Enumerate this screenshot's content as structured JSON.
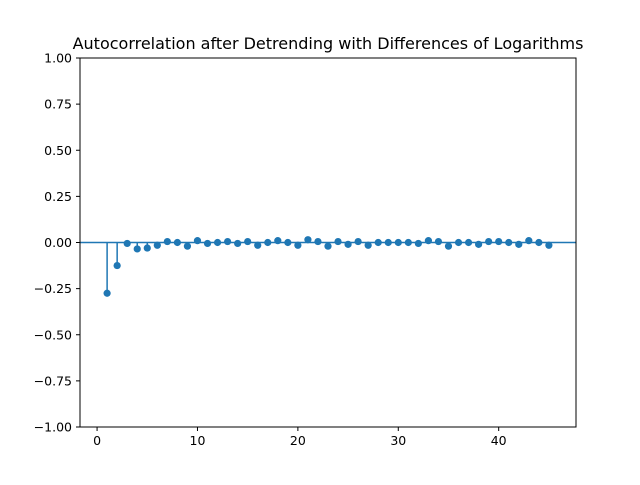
{
  "chart_data": {
    "type": "scatter",
    "subtype": "stem",
    "title": "Autocorrelation after Detrending with Differences of Logarithms",
    "xlabel": "",
    "ylabel": "",
    "xlim": [
      -1.7,
      47.7
    ],
    "ylim": [
      -1.0,
      1.0
    ],
    "x_ticks": [
      0,
      10,
      20,
      30,
      40
    ],
    "x_tick_labels": [
      "0",
      "10",
      "20",
      "30",
      "40"
    ],
    "y_ticks": [
      1.0,
      0.75,
      0.5,
      0.25,
      0.0,
      -0.25,
      -0.5,
      -0.75,
      -1.0
    ],
    "y_tick_labels": [
      "1.00",
      "0.75",
      "0.50",
      "0.25",
      "0.00",
      "−0.25",
      "−0.50",
      "−0.75",
      "−1.00"
    ],
    "grid": false,
    "legend": false,
    "baseline": 0,
    "color": "#1f77b4",
    "series": [
      {
        "x": [
          1,
          2,
          3,
          4,
          5,
          6,
          7,
          8,
          9,
          10,
          11,
          12,
          13,
          14,
          15,
          16,
          17,
          18,
          19,
          20,
          21,
          22,
          23,
          24,
          25,
          26,
          27,
          28,
          29,
          30,
          31,
          32,
          33,
          34,
          35,
          36,
          37,
          38,
          39,
          40,
          41,
          42,
          43,
          44,
          45
        ],
        "values": [
          -0.275,
          -0.125,
          -0.005,
          -0.035,
          -0.03,
          -0.015,
          0.005,
          0.0,
          -0.02,
          0.01,
          -0.005,
          0.0,
          0.005,
          -0.005,
          0.005,
          -0.015,
          0.0,
          0.01,
          0.0,
          -0.015,
          0.015,
          0.005,
          -0.02,
          0.005,
          -0.01,
          0.005,
          -0.015,
          0.0,
          0.0,
          0.0,
          0.0,
          -0.005,
          0.01,
          0.005,
          -0.02,
          0.0,
          0.0,
          -0.01,
          0.005,
          0.005,
          0.0,
          -0.01,
          0.01,
          0.0,
          -0.015
        ]
      }
    ]
  }
}
